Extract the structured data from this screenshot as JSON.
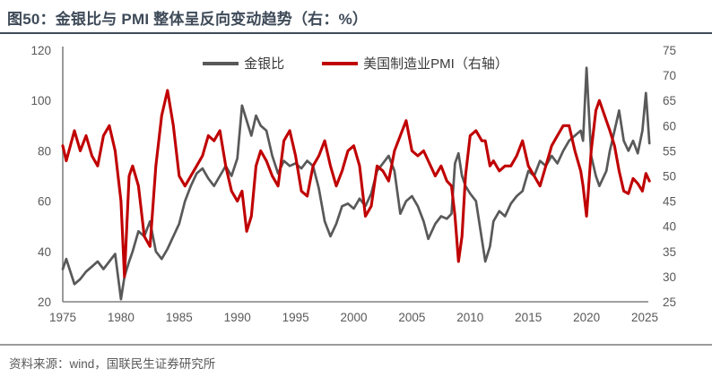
{
  "title": "图50：金银比与 PMI 整体呈反向变动趋势（右：%）",
  "source": "资料来源：wind，国联民生证券研究所",
  "colors": {
    "title": "#3E4A58",
    "axis_line": "#808080",
    "axis_text": "#595959",
    "gsr_line": "#595959",
    "pmi_line": "#C00000"
  },
  "chart_data": {
    "type": "line",
    "title": "图50：金银比与 PMI 整体呈反向变动趋势（右：%）",
    "x_axis": {
      "min": 1975,
      "max": 2025,
      "ticks": [
        1975,
        1980,
        1985,
        1990,
        1995,
        2000,
        2005,
        2010,
        2015,
        2020,
        2025
      ]
    },
    "left_axis": {
      "min": 20,
      "max": 120,
      "ticks": [
        120,
        100,
        80,
        60,
        40,
        20
      ]
    },
    "right_axis": {
      "min": 25,
      "max": 75,
      "ticks": [
        75,
        70,
        65,
        60,
        55,
        50,
        45,
        40,
        35,
        30,
        25
      ]
    },
    "grid": false,
    "legend_position": "top-center",
    "columns": [
      "year",
      "gold_silver_ratio",
      "us_manufacturing_pmi"
    ],
    "series": [
      {
        "name": "金银比",
        "axis": "left",
        "color": "#595959",
        "column": 1
      },
      {
        "name": "美国制造业PMI（右轴）",
        "axis": "right",
        "color": "#C00000",
        "column": 2
      }
    ],
    "rows": [
      [
        1975.0,
        33,
        56
      ],
      [
        1975.3,
        37,
        53
      ],
      [
        1976.0,
        27,
        59
      ],
      [
        1976.5,
        29,
        55
      ],
      [
        1977.0,
        32,
        58
      ],
      [
        1977.5,
        34,
        54
      ],
      [
        1978.0,
        36,
        52
      ],
      [
        1978.5,
        33,
        58
      ],
      [
        1979.0,
        36,
        60
      ],
      [
        1979.5,
        39,
        55
      ],
      [
        1980.0,
        21,
        45
      ],
      [
        1980.3,
        30,
        30
      ],
      [
        1980.7,
        36,
        50
      ],
      [
        1981.0,
        40,
        52
      ],
      [
        1981.5,
        48,
        48
      ],
      [
        1982.0,
        46,
        38
      ],
      [
        1982.5,
        52,
        36
      ],
      [
        1983.0,
        40,
        52
      ],
      [
        1983.5,
        37,
        62
      ],
      [
        1984.0,
        41,
        67
      ],
      [
        1984.5,
        46,
        60
      ],
      [
        1985.0,
        51,
        50
      ],
      [
        1985.5,
        60,
        48
      ],
      [
        1986.0,
        66,
        50
      ],
      [
        1986.5,
        71,
        52
      ],
      [
        1987.0,
        73,
        54
      ],
      [
        1987.5,
        69,
        58
      ],
      [
        1988.0,
        66,
        57
      ],
      [
        1988.5,
        70,
        59
      ],
      [
        1989.0,
        74,
        52
      ],
      [
        1989.5,
        70,
        47
      ],
      [
        1990.0,
        77,
        45
      ],
      [
        1990.4,
        98,
        47
      ],
      [
        1990.8,
        92,
        39
      ],
      [
        1991.2,
        86,
        42
      ],
      [
        1991.6,
        94,
        52
      ],
      [
        1992.0,
        90,
        55
      ],
      [
        1992.5,
        88,
        53
      ],
      [
        1993.0,
        78,
        50
      ],
      [
        1993.5,
        71,
        48
      ],
      [
        1994.0,
        76,
        57
      ],
      [
        1994.5,
        74,
        59
      ],
      [
        1995.0,
        75,
        54
      ],
      [
        1995.5,
        73,
        47
      ],
      [
        1996.0,
        76,
        46
      ],
      [
        1996.5,
        74,
        52
      ],
      [
        1997.0,
        65,
        54
      ],
      [
        1997.5,
        52,
        57
      ],
      [
        1998.0,
        46,
        52
      ],
      [
        1998.5,
        51,
        48
      ],
      [
        1999.0,
        58,
        51
      ],
      [
        1999.5,
        59,
        55
      ],
      [
        2000.0,
        57,
        56
      ],
      [
        2000.5,
        61,
        52
      ],
      [
        2001.0,
        58,
        42
      ],
      [
        2001.5,
        63,
        44
      ],
      [
        2002.0,
        72,
        52
      ],
      [
        2002.5,
        75,
        51
      ],
      [
        2003.0,
        78,
        49
      ],
      [
        2003.5,
        72,
        55
      ],
      [
        2004.0,
        55,
        58
      ],
      [
        2004.5,
        60,
        61
      ],
      [
        2005.0,
        62,
        55
      ],
      [
        2005.5,
        58,
        54
      ],
      [
        2006.0,
        52,
        55
      ],
      [
        2006.4,
        45,
        53
      ],
      [
        2007.0,
        51,
        50
      ],
      [
        2007.5,
        54,
        52
      ],
      [
        2008.0,
        53,
        49
      ],
      [
        2008.4,
        55,
        48
      ],
      [
        2008.7,
        75,
        42
      ],
      [
        2009.0,
        79,
        33
      ],
      [
        2009.3,
        70,
        38
      ],
      [
        2009.6,
        66,
        50
      ],
      [
        2010.0,
        63,
        58
      ],
      [
        2010.5,
        60,
        59
      ],
      [
        2011.0,
        45,
        57
      ],
      [
        2011.3,
        36,
        57
      ],
      [
        2011.7,
        42,
        52
      ],
      [
        2012.0,
        52,
        53
      ],
      [
        2012.5,
        56,
        51
      ],
      [
        2013.0,
        54,
        52
      ],
      [
        2013.5,
        59,
        52
      ],
      [
        2014.0,
        62,
        54
      ],
      [
        2014.5,
        64,
        57
      ],
      [
        2015.0,
        72,
        52
      ],
      [
        2015.5,
        70,
        50
      ],
      [
        2016.0,
        76,
        48
      ],
      [
        2016.5,
        74,
        52
      ],
      [
        2017.0,
        78,
        56
      ],
      [
        2017.5,
        75,
        58
      ],
      [
        2018.0,
        80,
        60
      ],
      [
        2018.5,
        84,
        60
      ],
      [
        2019.0,
        86,
        55
      ],
      [
        2019.5,
        88,
        51
      ],
      [
        2019.7,
        84,
        48
      ],
      [
        2020.0,
        113,
        42
      ],
      [
        2020.4,
        78,
        55
      ],
      [
        2020.8,
        70,
        63
      ],
      [
        2021.1,
        66,
        65
      ],
      [
        2021.7,
        72,
        61
      ],
      [
        2022.0,
        80,
        59
      ],
      [
        2022.4,
        88,
        56
      ],
      [
        2022.8,
        96,
        51
      ],
      [
        2023.2,
        84,
        47
      ],
      [
        2023.6,
        80,
        46.5
      ],
      [
        2024.0,
        84,
        49.5
      ],
      [
        2024.4,
        79,
        48.5
      ],
      [
        2024.8,
        88,
        47
      ],
      [
        2025.1,
        103,
        50.5
      ],
      [
        2025.4,
        83,
        49
      ]
    ]
  }
}
